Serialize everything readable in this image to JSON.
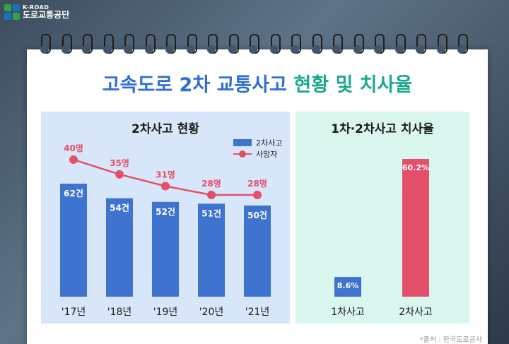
{
  "logo": {
    "en": "K-ROAD",
    "ko": "도로교통공단"
  },
  "title": {
    "part1": "고속도로 2차 교통사고",
    "part2": "현황 및 치사율"
  },
  "source": "*출처 : 한국도로공사",
  "colors": {
    "bar": "#3e73d0",
    "line": "#e4506a",
    "rate_bar_1": "#3e73d0",
    "rate_bar_2": "#e4506a",
    "title_blue": "#2f6fd1",
    "title_green": "#1aa88f"
  },
  "chart_data": [
    {
      "type": "bar",
      "title": "2차사고 현황",
      "categories": [
        "'17년",
        "'18년",
        "'19년",
        "'20년",
        "'21년"
      ],
      "series": [
        {
          "name": "2차사고",
          "type": "bar",
          "values": [
            62,
            54,
            52,
            51,
            50
          ],
          "labels": [
            "62건",
            "54건",
            "52건",
            "51건",
            "50건"
          ]
        },
        {
          "name": "사망자",
          "type": "line",
          "values": [
            40,
            35,
            31,
            28,
            28
          ],
          "labels": [
            "40명",
            "35명",
            "31명",
            "28명",
            "28명"
          ]
        }
      ],
      "legend": "top-right",
      "grid": false
    },
    {
      "type": "bar",
      "title": "1차·2차사고 치사율",
      "categories": [
        "1차사고",
        "2차사고"
      ],
      "values": [
        8.6,
        60.2
      ],
      "labels": [
        "8.6%",
        "60.2%"
      ],
      "grid": false
    }
  ]
}
